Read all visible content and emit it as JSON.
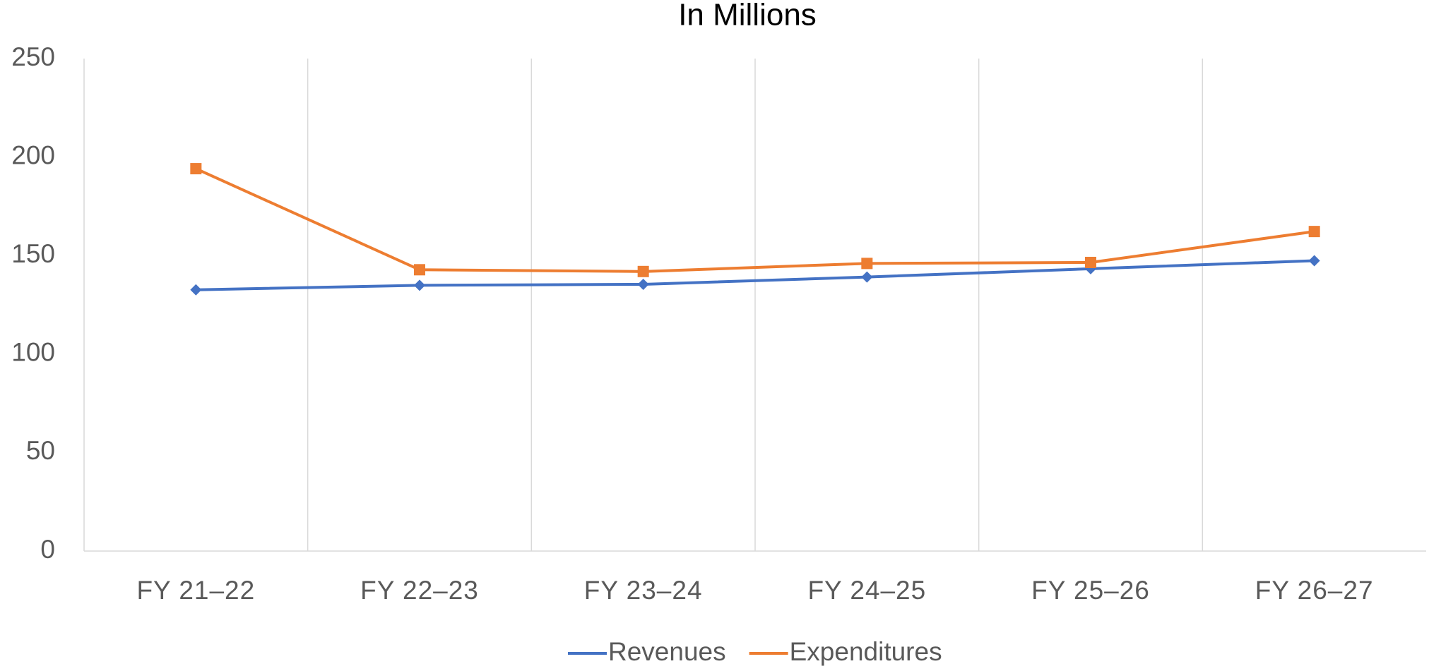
{
  "chart_data": {
    "type": "line",
    "title": "In Millions",
    "categories": [
      "FY 21–22",
      "FY 22–23",
      "FY 23–24",
      "FY 24–25",
      "FY 25–26",
      "FY 26–27"
    ],
    "series": [
      {
        "name": "Revenues",
        "color": "#4472c4",
        "marker": "diamond",
        "values": [
          132.6,
          134.9,
          135.4,
          139.1,
          143.3,
          147.4
        ]
      },
      {
        "name": "Expenditures",
        "color": "#ed7d31",
        "marker": "square",
        "values": [
          194.1,
          142.8,
          141.9,
          146.0,
          146.5,
          162.2
        ]
      }
    ],
    "ylim": [
      0,
      250
    ],
    "yticks": [
      0,
      50,
      100,
      150,
      200,
      250
    ],
    "grid": "x",
    "legend": "bottom"
  }
}
